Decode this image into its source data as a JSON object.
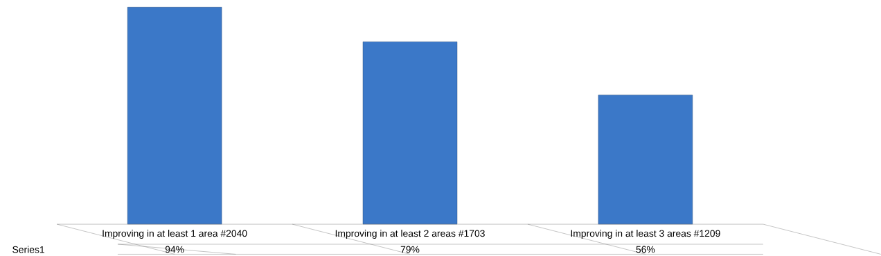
{
  "chart_data": {
    "type": "bar",
    "categories": [
      "Improving in at least 1 area #2040",
      "Improving in at least 2 areas #1703",
      "Improving in at least 3 areas #1209"
    ],
    "series": [
      {
        "name": "Series1",
        "color": "#3b78c8",
        "values": [
          94,
          79,
          56
        ],
        "value_labels": [
          "94%",
          "79%",
          "56%"
        ]
      }
    ]
  }
}
